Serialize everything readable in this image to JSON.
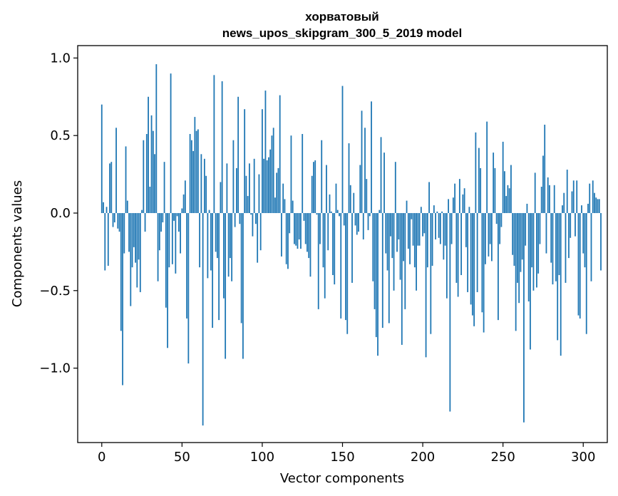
{
  "chart_data": {
    "type": "bar",
    "title_line1": "хорватовый",
    "title_line2": "news_upos_skipgram_300_5_2019 model",
    "xlabel": "Vector components",
    "ylabel": "Components values",
    "xlim": [
      -15,
      315
    ],
    "ylim": [
      -1.48,
      1.08
    ],
    "x_ticks": [
      0,
      50,
      100,
      150,
      200,
      250,
      300
    ],
    "x_tick_labels": [
      "0",
      "50",
      "100",
      "150",
      "200",
      "250",
      "300"
    ],
    "y_ticks": [
      -1.0,
      -0.5,
      0.0,
      0.5,
      1.0
    ],
    "y_tick_labels": [
      "−1.0",
      "−0.5",
      "0.0",
      "0.5",
      "1.0"
    ],
    "bar_color": "#1f77b4",
    "values": [
      0.7,
      0.07,
      -0.37,
      0.04,
      -0.34,
      0.32,
      0.33,
      -0.09,
      -0.06,
      0.55,
      -0.1,
      -0.12,
      -0.76,
      -1.11,
      -0.26,
      0.43,
      0.08,
      -0.25,
      -0.6,
      -0.35,
      -0.22,
      -0.32,
      -0.48,
      -0.3,
      -0.51,
      0.02,
      0.47,
      -0.12,
      0.51,
      0.75,
      0.17,
      0.63,
      0.53,
      0.38,
      0.96,
      -0.44,
      -0.24,
      -0.12,
      -0.06,
      0.33,
      -0.61,
      -0.87,
      -0.35,
      0.9,
      -0.33,
      -0.05,
      -0.39,
      -0.02,
      -0.12,
      -0.26,
      0.03,
      0.12,
      0.21,
      -0.68,
      -0.97,
      0.51,
      0.47,
      0.4,
      0.62,
      0.53,
      0.54,
      -0.35,
      0.38,
      -1.37,
      0.35,
      0.24,
      -0.42,
      0.02,
      -0.37,
      -0.74,
      0.89,
      -0.25,
      -0.29,
      -0.69,
      0.2,
      0.85,
      -0.55,
      -0.94,
      0.32,
      -0.41,
      -0.29,
      -0.44,
      0.47,
      -0.09,
      0.29,
      0.75,
      -0.07,
      -0.71,
      -0.94,
      0.67,
      0.24,
      0.11,
      0.32,
      -0.01,
      -0.15,
      0.35,
      -0.07,
      -0.32,
      0.25,
      -0.24,
      0.67,
      0.35,
      0.79,
      0.34,
      0.36,
      0.41,
      0.5,
      0.55,
      0.1,
      0.26,
      0.29,
      0.76,
      -0.28,
      0.19,
      0.09,
      -0.33,
      -0.36,
      -0.13,
      0.5,
      0.08,
      -0.2,
      -0.21,
      -0.23,
      -0.17,
      -0.23,
      0.51,
      -0.05,
      -0.2,
      -0.25,
      -0.29,
      -0.41,
      0.24,
      0.33,
      0.34,
      -0.01,
      -0.62,
      -0.2,
      0.47,
      -0.35,
      -0.55,
      0.31,
      -0.24,
      0.12,
      0.01,
      -0.4,
      -0.46,
      0.19,
      0.02,
      -0.02,
      -0.68,
      0.82,
      -0.08,
      -0.69,
      -0.78,
      0.45,
      0.18,
      -0.45,
      0.13,
      -0.08,
      -0.14,
      -0.12,
      0.31,
      0.66,
      -0.17,
      0.55,
      0.22,
      -0.11,
      -0.02,
      0.72,
      -0.44,
      -0.62,
      -0.8,
      -0.92,
      0.02,
      0.49,
      -0.74,
      0.39,
      -0.26,
      -0.37,
      -0.71,
      -0.15,
      -0.29,
      -0.5,
      0.33,
      -0.25,
      -0.17,
      -0.43,
      -0.85,
      -0.31,
      -0.62,
      0.08,
      -0.23,
      -0.33,
      -0.04,
      -0.21,
      -0.35,
      -0.5,
      -0.21,
      -0.21,
      0.04,
      -0.15,
      -0.13,
      -0.93,
      -0.35,
      0.2,
      -0.78,
      -0.34,
      0.05,
      -0.17,
      0.01,
      -0.16,
      -0.2,
      0.01,
      -0.3,
      -0.21,
      -0.55,
      0.09,
      -1.28,
      -0.2,
      0.1,
      0.19,
      -0.45,
      -0.54,
      0.22,
      -0.4,
      0.12,
      0.16,
      -0.22,
      -0.51,
      0.04,
      -0.59,
      -0.66,
      -0.73,
      0.52,
      -0.51,
      0.42,
      0.29,
      -0.64,
      -0.77,
      -0.33,
      0.59,
      -0.28,
      -0.2,
      -0.31,
      0.39,
      0.29,
      -0.07,
      -0.69,
      -0.2,
      -0.09,
      0.46,
      0.27,
      0.11,
      0.18,
      0.16,
      0.31,
      -0.27,
      -0.34,
      -0.76,
      -0.45,
      -0.58,
      -0.38,
      -0.3,
      -1.35,
      -0.21,
      0.06,
      -0.57,
      -0.88,
      -0.35,
      -0.5,
      0.26,
      -0.48,
      -0.39,
      -0.2,
      0.17,
      0.37,
      0.57,
      -0.26,
      0.23,
      0.18,
      -0.32,
      -0.46,
      0.18,
      -0.44,
      -0.82,
      -0.4,
      -0.92,
      0.05,
      0.13,
      -0.45,
      0.28,
      -0.29,
      -0.16,
      0.14,
      0.21,
      -0.15,
      0.21,
      -0.66,
      -0.68,
      0.05,
      -0.26,
      -0.35,
      -0.78,
      0.06,
      0.19,
      -0.44,
      0.21,
      0.13,
      0.1,
      0.09,
      0.09,
      -0.37
    ]
  }
}
